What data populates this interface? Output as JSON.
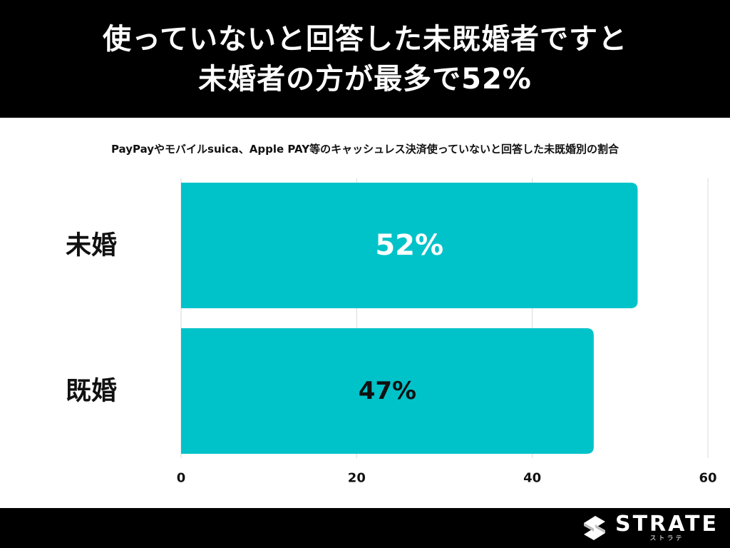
{
  "headline": {
    "line1": "使っていないと回答した未既婚者ですと",
    "line2": "未婚者の方が最多で52%"
  },
  "chart_data": {
    "type": "bar",
    "orientation": "horizontal",
    "title": "PayPayやモバイルsuica、Apple PAY等のキャッシュレス決済使っていないと回答した未既婚別の割合",
    "categories": [
      "未婚",
      "既婚"
    ],
    "values": [
      52,
      47
    ],
    "value_labels": [
      "52%",
      "47%"
    ],
    "value_label_colors": [
      "#ffffff",
      "#111111"
    ],
    "xlim": [
      0,
      60
    ],
    "x_ticks": [
      "0",
      "20",
      "40",
      "60"
    ],
    "xlabel": "",
    "ylabel": "",
    "grid": true,
    "legend": "none",
    "bar_color": "#00c3c9"
  },
  "brand": {
    "name": "STRATE",
    "kana": "ストラテ",
    "icon": "strate-logo-icon"
  },
  "colors": {
    "header_bg": "#000000",
    "header_text": "#ffffff",
    "bar": "#00c3c9",
    "grid": "#d9d9d9"
  }
}
